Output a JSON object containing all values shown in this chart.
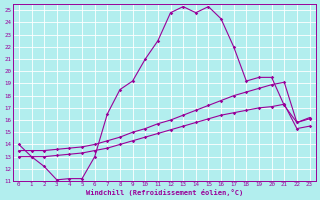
{
  "xlabel": "Windchill (Refroidissement éolien,°C)",
  "bg_color": "#b2eeee",
  "grid_color": "#ffffff",
  "line_color": "#990099",
  "xlim": [
    -0.5,
    23.5
  ],
  "ylim": [
    11,
    25.5
  ],
  "xticks": [
    0,
    1,
    2,
    3,
    4,
    5,
    6,
    7,
    8,
    9,
    10,
    11,
    12,
    13,
    14,
    15,
    16,
    17,
    18,
    19,
    20,
    21,
    22,
    23
  ],
  "yticks": [
    11,
    12,
    13,
    14,
    15,
    16,
    17,
    18,
    19,
    20,
    21,
    22,
    23,
    24,
    25
  ],
  "series1_x": [
    0,
    1,
    2,
    3,
    4,
    5,
    6,
    7,
    8,
    9,
    10,
    11,
    12,
    13,
    14,
    15,
    16,
    17,
    18,
    19,
    20,
    21,
    22,
    23
  ],
  "series1_y": [
    14.0,
    13.0,
    12.2,
    11.1,
    11.2,
    11.2,
    13.0,
    16.5,
    18.5,
    19.2,
    21.0,
    22.5,
    24.8,
    25.3,
    24.8,
    25.3,
    24.3,
    22.0,
    19.2,
    19.5,
    19.5,
    17.2,
    15.8,
    16.2
  ],
  "series2_x": [
    0,
    1,
    2,
    3,
    4,
    5,
    6,
    7,
    8,
    9,
    10,
    11,
    12,
    13,
    14,
    15,
    16,
    17,
    18,
    19,
    20,
    21,
    22,
    23
  ],
  "series2_y": [
    13.5,
    13.5,
    13.5,
    13.6,
    13.7,
    13.8,
    14.0,
    14.3,
    14.6,
    15.0,
    15.3,
    15.7,
    16.0,
    16.4,
    16.8,
    17.2,
    17.6,
    18.0,
    18.3,
    18.6,
    18.9,
    19.1,
    15.8,
    16.1
  ],
  "series3_x": [
    0,
    1,
    2,
    3,
    4,
    5,
    6,
    7,
    8,
    9,
    10,
    11,
    12,
    13,
    14,
    15,
    16,
    17,
    18,
    19,
    20,
    21,
    22,
    23
  ],
  "series3_y": [
    13.0,
    13.0,
    13.0,
    13.1,
    13.2,
    13.3,
    13.5,
    13.7,
    14.0,
    14.3,
    14.6,
    14.9,
    15.2,
    15.5,
    15.8,
    16.1,
    16.4,
    16.6,
    16.8,
    17.0,
    17.1,
    17.3,
    15.3,
    15.5
  ]
}
